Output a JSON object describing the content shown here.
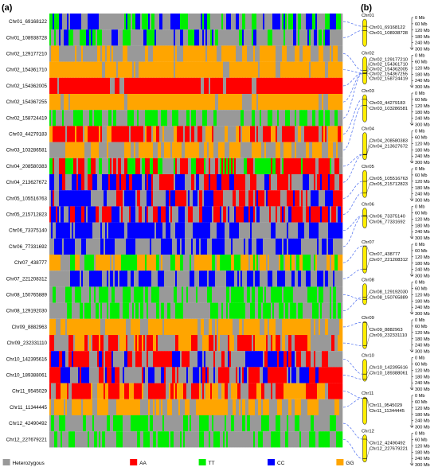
{
  "panels": {
    "a": "(a)",
    "b": "(b)"
  },
  "colors": {
    "Heterozygous": "#999999",
    "AA": "#ff0000",
    "TT": "#00ee00",
    "CC": "#0000ff",
    "GG": "#ffa500",
    "connector": "#4a6cf0",
    "chromosome_fill": "#ffee00"
  },
  "legend": [
    {
      "key": "Heterozygous",
      "label": "Heterozygous"
    },
    {
      "key": "AA",
      "label": "AA"
    },
    {
      "key": "TT",
      "label": "TT"
    },
    {
      "key": "CC",
      "label": "CC"
    },
    {
      "key": "GG",
      "label": "GG"
    }
  ],
  "heatmap_rows": [
    {
      "label": "Chr01_69168122",
      "pattern": "mixed_blue_green",
      "chr": 0,
      "mb": 69
    },
    {
      "label": "Chr01_108938728",
      "pattern": "mixed_blue_green",
      "chr": 0,
      "mb": 109
    },
    {
      "label": "Chr02_129177210",
      "pattern": "orange_grey",
      "chr": 1,
      "mb": 129
    },
    {
      "label": "Chr02_154361710",
      "pattern": "solid_orange",
      "chr": 1,
      "mb": 154
    },
    {
      "label": "Chr02_154362005",
      "pattern": "solid_red",
      "chr": 1,
      "mb": 154
    },
    {
      "label": "Chr02_154367255",
      "pattern": "solid_orange",
      "chr": 1,
      "mb": 154
    },
    {
      "label": "Chr02_158724419",
      "pattern": "grey_green",
      "chr": 1,
      "mb": 159
    },
    {
      "label": "Chr03_44279183",
      "pattern": "red_orange",
      "chr": 2,
      "mb": 44
    },
    {
      "label": "Chr03_103286581",
      "pattern": "orange_grey",
      "chr": 2,
      "mb": 103
    },
    {
      "label": "Chr04_208580383",
      "pattern": "red_green",
      "chr": 3,
      "mb": 209
    },
    {
      "label": "Chr04_213627672",
      "pattern": "red_blue_grey",
      "chr": 3,
      "mb": 214
    },
    {
      "label": "Chr05_105516763",
      "pattern": "red_blue_grey",
      "chr": 4,
      "mb": 106
    },
    {
      "label": "Chr05_215712823",
      "pattern": "red_blue_grey",
      "chr": 4,
      "mb": 216
    },
    {
      "label": "Chr06_73375140",
      "pattern": "blue_grey",
      "chr": 5,
      "mb": 73
    },
    {
      "label": "Chr06_77331692",
      "pattern": "blue_grey",
      "chr": 5,
      "mb": 77
    },
    {
      "label": "Chr07_438777",
      "pattern": "orange_green",
      "chr": 6,
      "mb": 0.4
    },
    {
      "label": "Chr07_221208312",
      "pattern": "blue_grey",
      "chr": 6,
      "mb": 221
    },
    {
      "label": "Chr08_150765889",
      "pattern": "green_grey",
      "chr": 7,
      "mb": 151
    },
    {
      "label": "Chr08_129192030",
      "pattern": "green_grey",
      "chr": 7,
      "mb": 129
    },
    {
      "label": "Chr09_8882963",
      "pattern": "orange_grey",
      "chr": 8,
      "mb": 9
    },
    {
      "label": "Chr09_232331110",
      "pattern": "red_orange",
      "chr": 8,
      "mb": 232
    },
    {
      "label": "Chr10_142395616",
      "pattern": "red_blue_grey",
      "chr": 9,
      "mb": 142
    },
    {
      "label": "Chr10_189388061",
      "pattern": "red_blue_grey",
      "chr": 9,
      "mb": 189
    },
    {
      "label": "Chr11_9545029",
      "pattern": "red_orange",
      "chr": 10,
      "mb": 10
    },
    {
      "label": "Chr11_11344445",
      "pattern": "orange_grey",
      "chr": 10,
      "mb": 11
    },
    {
      "label": "Chr12_42490492",
      "pattern": "grey_green",
      "chr": 11,
      "mb": 42
    },
    {
      "label": "Chr12_227679221",
      "pattern": "green_grey",
      "chr": 11,
      "mb": 228
    }
  ],
  "ticks": [
    "0 Mb",
    "60 Mb",
    "120 Mb",
    "180 Mb",
    "240 Mb",
    "300 Mb"
  ],
  "chromosomes": [
    {
      "name": "Chr01",
      "length_mb": 260,
      "markers": [
        "Chr01_69168122",
        "Chr01_108938728"
      ]
    },
    {
      "name": "Chr02",
      "length_mb": 260,
      "markers": [
        "Chr02_129177210",
        "Chr02_154361710",
        "Chr02_154362005",
        "Chr02_154367255",
        "Chr02_158724419"
      ]
    },
    {
      "name": "Chr03",
      "length_mb": 260,
      "markers": [
        "Chr03_44279183",
        "Chr03_103286581"
      ]
    },
    {
      "name": "Chr04",
      "length_mb": 260,
      "markers": [
        "Chr04_208580383",
        "Chr04_213627672"
      ]
    },
    {
      "name": "Chr05",
      "length_mb": 260,
      "markers": [
        "Chr05_105516763",
        "Chr05_215712823"
      ]
    },
    {
      "name": "Chr06",
      "length_mb": 190,
      "markers": [
        "Chr06_73375140",
        "Chr06_77331692"
      ]
    },
    {
      "name": "Chr07",
      "length_mb": 260,
      "markers": [
        "Chr07_438777",
        "Chr07_221208312"
      ]
    },
    {
      "name": "Chr08",
      "length_mb": 200,
      "markers": [
        "Chr08_129192030",
        "Chr08_150765889"
      ]
    },
    {
      "name": "Chr09",
      "length_mb": 260,
      "markers": [
        "Chr09_8882963",
        "Chr09_232331110"
      ]
    },
    {
      "name": "Chr10",
      "length_mb": 210,
      "markers": [
        "Chr10_142395616",
        "Chr10_189388061"
      ]
    },
    {
      "name": "Chr11",
      "length_mb": 260,
      "markers": [
        "Chr11_9545029",
        "Chr11_11344445"
      ]
    },
    {
      "name": "Chr12",
      "length_mb": 260,
      "markers": [
        "Chr12_42490492",
        "Chr12_227679221"
      ]
    }
  ]
}
